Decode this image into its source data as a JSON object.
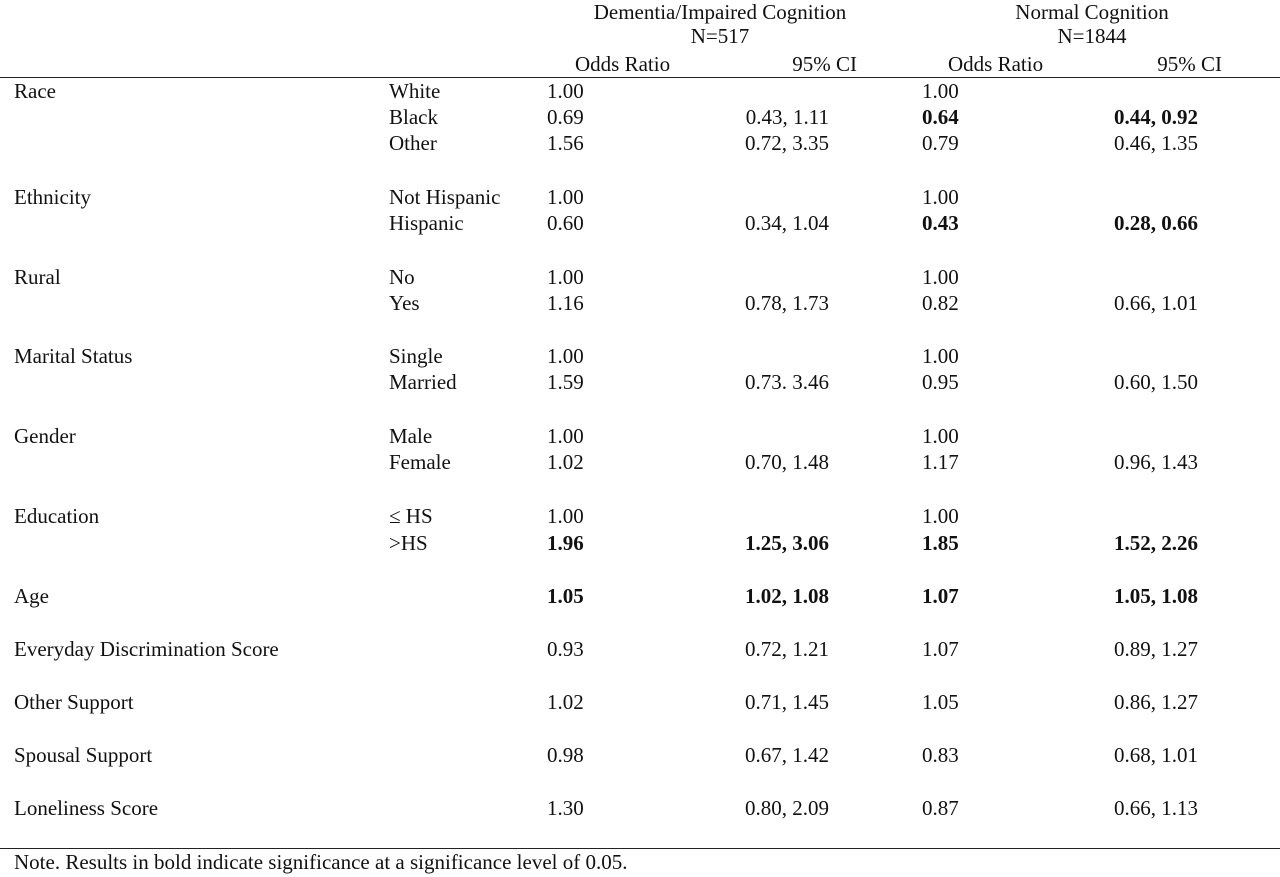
{
  "groups": [
    {
      "title": "Dementia/Impaired Cognition",
      "n": "N=517"
    },
    {
      "title": "Normal Cognition",
      "n": "N=1844"
    }
  ],
  "columns": [
    "Odds Ratio",
    "95% CI",
    "Odds Ratio",
    "95% CI"
  ],
  "sections": [
    {
      "label": "Race",
      "rows": [
        {
          "level": "White",
          "or1": "1.00",
          "ci1": "",
          "or2": "1.00",
          "ci2": ""
        },
        {
          "level": "Black",
          "or1": "0.69",
          "ci1": "0.43, 1.11",
          "or2": "0.64",
          "ci2": "0.44, 0.92",
          "sig2": true
        },
        {
          "level": "Other",
          "or1": "1.56",
          "ci1": "0.72, 3.35",
          "or2": "0.79",
          "ci2": "0.46, 1.35"
        }
      ]
    },
    {
      "label": "Ethnicity",
      "rows": [
        {
          "level": "Not Hispanic",
          "or1": "1.00",
          "ci1": "",
          "or2": "1.00",
          "ci2": ""
        },
        {
          "level": "Hispanic",
          "or1": "0.60",
          "ci1": "0.34, 1.04",
          "or2": "0.43",
          "ci2": "0.28, 0.66",
          "sig2": true
        }
      ]
    },
    {
      "label": "Rural",
      "rows": [
        {
          "level": "No",
          "or1": "1.00",
          "ci1": "",
          "or2": "1.00",
          "ci2": ""
        },
        {
          "level": "Yes",
          "or1": "1.16",
          "ci1": "0.78, 1.73",
          "or2": "0.82",
          "ci2": "0.66, 1.01"
        }
      ]
    },
    {
      "label": "Marital Status",
      "rows": [
        {
          "level": "Single",
          "or1": "1.00",
          "ci1": "",
          "or2": "1.00",
          "ci2": ""
        },
        {
          "level": "Married",
          "or1": "1.59",
          "ci1": "0.73. 3.46",
          "or2": "0.95",
          "ci2": "0.60, 1.50"
        }
      ]
    },
    {
      "label": "Gender",
      "rows": [
        {
          "level": "Male",
          "or1": "1.00",
          "ci1": "",
          "or2": "1.00",
          "ci2": ""
        },
        {
          "level": "Female",
          "or1": "1.02",
          "ci1": "0.70, 1.48",
          "or2": "1.17",
          "ci2": "0.96, 1.43"
        }
      ]
    },
    {
      "label": "Education",
      "rows": [
        {
          "level": "≤ HS",
          "or1": "1.00",
          "ci1": "",
          "or2": "1.00",
          "ci2": ""
        },
        {
          "level": ">HS",
          "or1": "1.96",
          "ci1": "1.25, 3.06",
          "or2": "1.85",
          "ci2": "1.52, 2.26",
          "sig1": true,
          "sig2": true
        }
      ]
    },
    {
      "label": "Age",
      "rows": [
        {
          "level": "",
          "or1": "1.05",
          "ci1": "1.02, 1.08",
          "or2": "1.07",
          "ci2": "1.05, 1.08",
          "sig1": true,
          "sig2": true
        }
      ]
    },
    {
      "label": "Everyday Discrimination Score",
      "rows": [
        {
          "level": "",
          "or1": "0.93",
          "ci1": "0.72, 1.21",
          "or2": "1.07",
          "ci2": "0.89, 1.27"
        }
      ]
    },
    {
      "label": "Other Support",
      "rows": [
        {
          "level": "",
          "or1": "1.02",
          "ci1": "0.71, 1.45",
          "or2": "1.05",
          "ci2": "0.86, 1.27"
        }
      ]
    },
    {
      "label": "Spousal Support",
      "rows": [
        {
          "level": "",
          "or1": "0.98",
          "ci1": "0.67, 1.42",
          "or2": "0.83",
          "ci2": "0.68, 1.01"
        }
      ]
    },
    {
      "label": "Loneliness Score",
      "rows": [
        {
          "level": "",
          "or1": "1.30",
          "ci1": "0.80, 2.09",
          "or2": "0.87",
          "ci2": "0.66, 1.13"
        }
      ]
    }
  ],
  "note": "Note. Results in bold indicate significance at a significance level of 0.05."
}
